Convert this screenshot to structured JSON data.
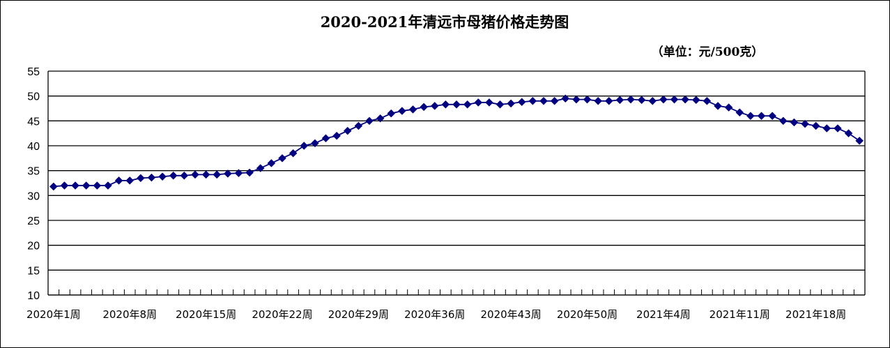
{
  "chart_data": {
    "type": "line",
    "title": "2020-2021年清远市母猪价格走势图",
    "unit_note": "（单位：元/500克）",
    "xlabel": "",
    "ylabel": "",
    "ylim": [
      10,
      55
    ],
    "yticks": [
      55,
      50,
      45,
      40,
      35,
      30,
      25,
      20,
      15,
      10
    ],
    "grid": true,
    "legend": "none",
    "x_tick_labels": [
      "2020年1周",
      "2020年8周",
      "2020年15周",
      "2020年22周",
      "2020年29周",
      "2020年36周",
      "2020年43周",
      "2020年50周",
      "2021年4周",
      "2021年11周",
      "2021年18周"
    ],
    "series": [
      {
        "color": "#000080",
        "marker": "diamond",
        "values": [
          31.8,
          32.0,
          32.0,
          32.0,
          32.0,
          32.0,
          33.0,
          33.0,
          33.5,
          33.6,
          33.8,
          34.0,
          34.0,
          34.2,
          34.2,
          34.2,
          34.4,
          34.5,
          34.6,
          35.5,
          36.5,
          37.5,
          38.5,
          40.0,
          40.5,
          41.5,
          42.0,
          43.0,
          44.0,
          45.0,
          45.5,
          46.5,
          47.0,
          47.3,
          47.8,
          48.0,
          48.3,
          48.3,
          48.3,
          48.7,
          48.7,
          48.3,
          48.5,
          48.8,
          49.0,
          49.0,
          49.0,
          49.5,
          49.3,
          49.3,
          49.0,
          49.0,
          49.2,
          49.3,
          49.2,
          49.0,
          49.3,
          49.3,
          49.3,
          49.2,
          49.0,
          48.0,
          47.7,
          46.7,
          46.0,
          46.0,
          46.0,
          45.0,
          44.7,
          44.4,
          44.0,
          43.5,
          43.5,
          42.5,
          41.0
        ]
      }
    ]
  }
}
